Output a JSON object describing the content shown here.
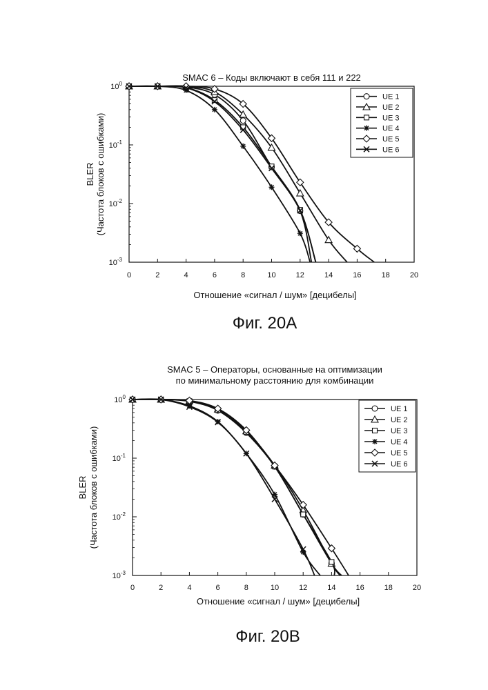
{
  "chart_data": [
    {
      "type": "line",
      "title_lines": [
        "SMAC 6 – Коды включают в себя 111 и 222"
      ],
      "xlabel": "Отношение «сигнал / шум» [децибелы]",
      "ylabel_lines": [
        "BLER",
        "(Частота блоков с ошибками)"
      ],
      "xlim": [
        0,
        20
      ],
      "ylim": [
        0.001,
        1
      ],
      "yscale": "log",
      "x_ticks": [
        "0",
        "2",
        "4",
        "6",
        "8",
        "10",
        "12",
        "14",
        "16",
        "18",
        "20"
      ],
      "y_ticks": [
        {
          "base": "10",
          "exp": "0"
        },
        {
          "base": "10",
          "exp": "-1"
        },
        {
          "base": "10",
          "exp": "-2"
        },
        {
          "base": "10",
          "exp": "-3"
        }
      ],
      "legend_position": "top-right",
      "caption": "Фиг. 20А",
      "series": [
        {
          "name": "UE 1",
          "marker": "circle",
          "x": [
            0,
            2,
            4,
            6,
            8,
            10,
            12,
            12.8
          ],
          "y": [
            1,
            1,
            0.97,
            0.72,
            0.26,
            0.042,
            0.0075,
            0.001
          ]
        },
        {
          "name": "UE 2",
          "marker": "triangle",
          "x": [
            0,
            2,
            4,
            6,
            8,
            10,
            12,
            14,
            15.3
          ],
          "y": [
            1,
            1,
            1,
            0.8,
            0.33,
            0.09,
            0.015,
            0.0024,
            0.001
          ]
        },
        {
          "name": "UE 3",
          "marker": "square",
          "x": [
            0,
            2,
            4,
            6,
            8,
            10,
            12,
            13.1
          ],
          "y": [
            1,
            1,
            0.95,
            0.58,
            0.2,
            0.043,
            0.0078,
            0.001
          ]
        },
        {
          "name": "UE 4",
          "marker": "asterisk",
          "x": [
            0,
            2,
            4,
            6,
            8,
            10,
            12,
            12.7
          ],
          "y": [
            1,
            1,
            0.85,
            0.4,
            0.095,
            0.019,
            0.0031,
            0.001
          ]
        },
        {
          "name": "UE 5",
          "marker": "diamond",
          "x": [
            0,
            2,
            4,
            6,
            8,
            10,
            12,
            14,
            16,
            17.2
          ],
          "y": [
            1,
            1,
            1,
            0.9,
            0.5,
            0.13,
            0.023,
            0.0048,
            0.0017,
            0.001
          ]
        },
        {
          "name": "UE 6",
          "marker": "x",
          "x": [
            0,
            2,
            4,
            6,
            8,
            10,
            12,
            13.1
          ],
          "y": [
            1,
            1,
            0.94,
            0.55,
            0.18,
            0.04,
            0.0076,
            0.001
          ]
        }
      ]
    },
    {
      "type": "line",
      "title_lines": [
        "SMAC 5 – Операторы, основанные на оптимизации",
        "по минимальному расстоянию для комбинации"
      ],
      "xlabel": "Отношение «сигнал / шум» [децибелы]",
      "ylabel_lines": [
        "BLER",
        "(Частота блоков с ошибками)"
      ],
      "xlim": [
        0,
        20
      ],
      "ylim": [
        0.001,
        1
      ],
      "yscale": "log",
      "x_ticks": [
        "0",
        "2",
        "4",
        "6",
        "8",
        "10",
        "12",
        "14",
        "16",
        "18",
        "20"
      ],
      "y_ticks": [
        {
          "base": "10",
          "exp": "0"
        },
        {
          "base": "10",
          "exp": "-1"
        },
        {
          "base": "10",
          "exp": "-2"
        },
        {
          "base": "10",
          "exp": "-3"
        }
      ],
      "legend_position": "top-right",
      "caption": "Фиг. 20В",
      "series": [
        {
          "name": "UE 1",
          "marker": "circle",
          "x": [
            0,
            2,
            4,
            6,
            8,
            10,
            12,
            14,
            14.7
          ],
          "y": [
            1,
            1,
            0.93,
            0.65,
            0.27,
            0.072,
            0.011,
            0.0016,
            0.001
          ]
        },
        {
          "name": "UE 2",
          "marker": "triangle",
          "x": [
            0,
            2,
            4,
            6,
            8,
            10,
            12,
            14,
            14.6
          ],
          "y": [
            1,
            1,
            0.95,
            0.68,
            0.29,
            0.075,
            0.013,
            0.0016,
            0.001
          ]
        },
        {
          "name": "UE 3",
          "marker": "square",
          "x": [
            0,
            2,
            4,
            6,
            8,
            10,
            12,
            14,
            14.2
          ],
          "y": [
            1,
            1,
            0.94,
            0.66,
            0.28,
            0.072,
            0.011,
            0.0017,
            0.001
          ]
        },
        {
          "name": "UE 4",
          "marker": "asterisk",
          "x": [
            0,
            2,
            4,
            6,
            8,
            10,
            12,
            13.2
          ],
          "y": [
            1,
            1,
            0.78,
            0.42,
            0.12,
            0.024,
            0.0025,
            0.001
          ]
        },
        {
          "name": "UE 5",
          "marker": "diamond",
          "x": [
            0,
            2,
            4,
            6,
            8,
            10,
            12,
            14,
            15.2
          ],
          "y": [
            1,
            1,
            0.96,
            0.7,
            0.3,
            0.075,
            0.016,
            0.0029,
            0.001
          ]
        },
        {
          "name": "UE 6",
          "marker": "x",
          "x": [
            0,
            2,
            4,
            6,
            8,
            10,
            12,
            12.8
          ],
          "y": [
            1,
            1,
            0.75,
            0.41,
            0.12,
            0.02,
            0.0028,
            0.001
          ]
        }
      ]
    }
  ]
}
